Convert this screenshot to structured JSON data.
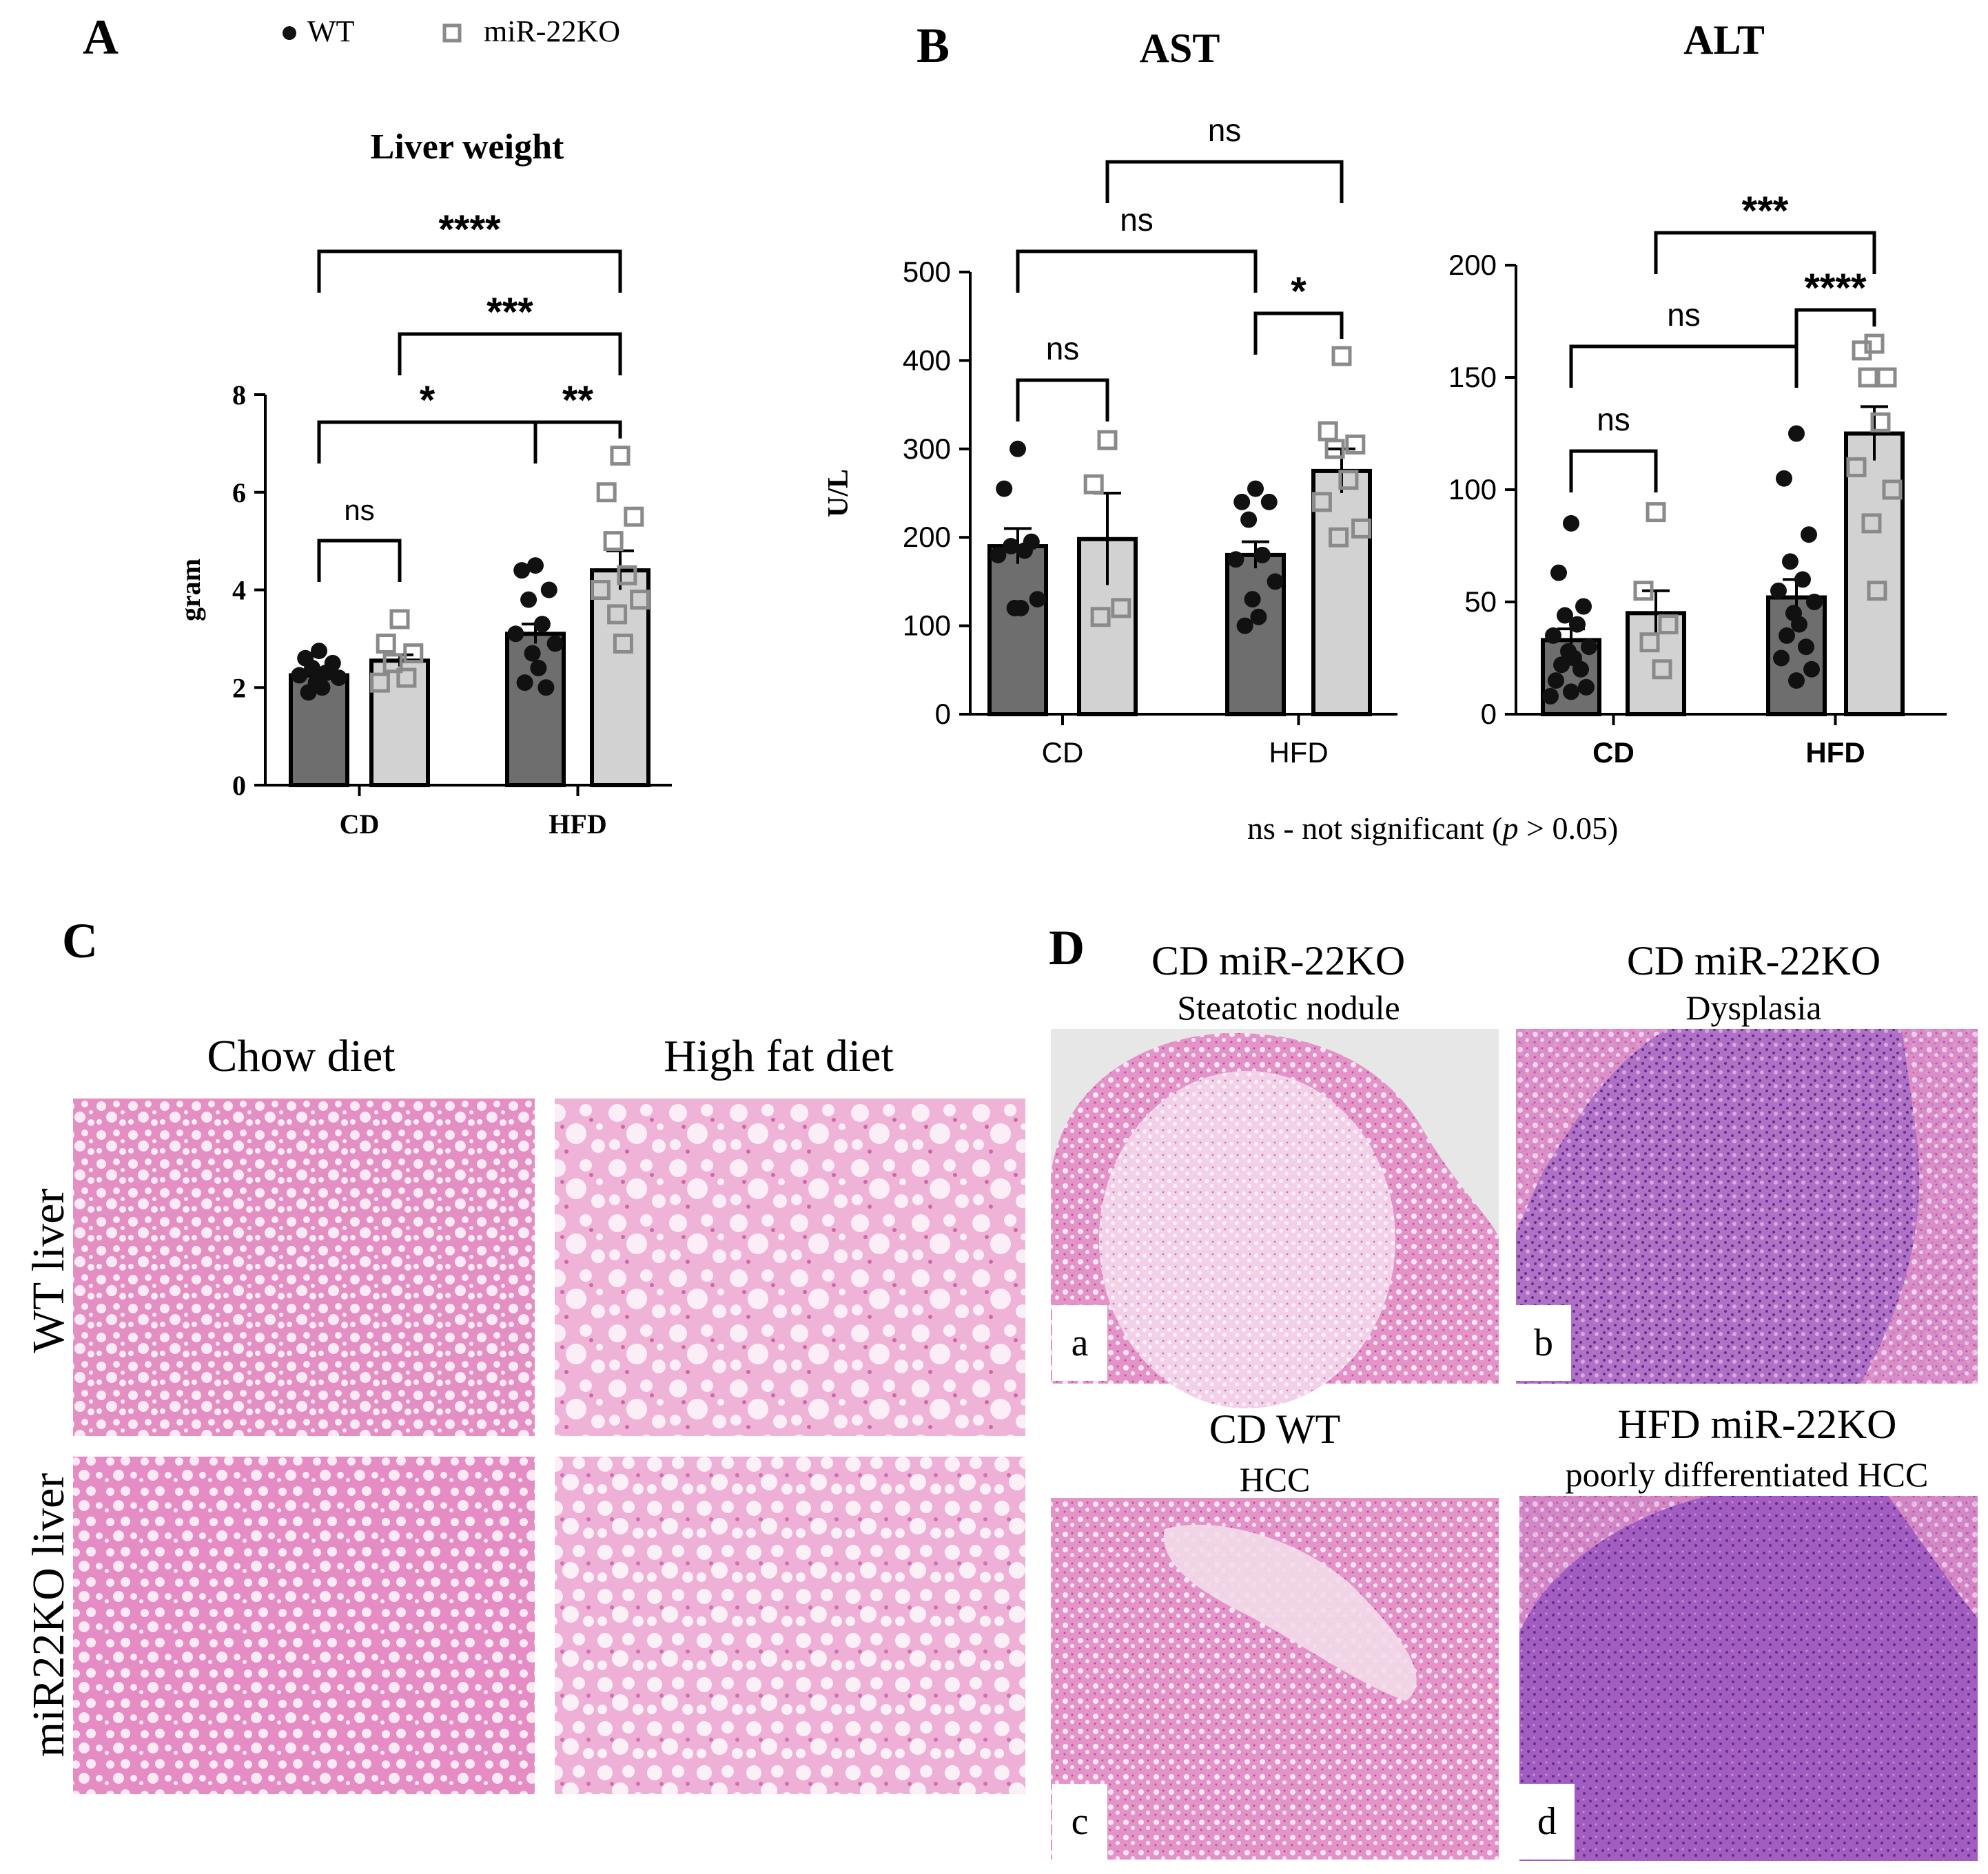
{
  "colors": {
    "wt_bar": "#6e6e6e",
    "ko_bar": "#d2d2d2",
    "wt_point": "#111111",
    "ko_point": "#8a8a8a",
    "he_pink": "#e48fc4",
    "he_light": "#f6d5ea",
    "he_purple": "#a760c2"
  },
  "legend": {
    "wt": "WT",
    "ko": "miR-22KO"
  },
  "panel_labels": {
    "a": "A",
    "b": "B",
    "c": "C",
    "d": "D"
  },
  "footnote": {
    "prefix": "ns - not significant (",
    "p": "p",
    "suffix": " > 0.05)"
  },
  "chart_data": [
    {
      "type": "bar",
      "title": "Liver weight",
      "ylabel": "gram",
      "ylim": [
        0,
        8
      ],
      "yticks": [
        "0",
        "2",
        "4",
        "6",
        "8"
      ],
      "categories": [
        "CD",
        "HFD"
      ],
      "series": [
        {
          "name": "WT",
          "values": [
            2.25,
            3.1
          ],
          "sem": [
            0.1,
            0.2
          ],
          "points": [
            [
              2.75,
              2.6,
              2.5,
              2.4,
              2.3,
              2.25,
              2.2,
              2.1,
              2.0,
              1.9
            ],
            [
              4.5,
              4.4,
              4.0,
              3.8,
              3.3,
              3.1,
              2.9,
              2.7,
              2.4,
              2.1,
              2.0
            ]
          ]
        },
        {
          "name": "miR-22KO",
          "values": [
            2.55,
            4.4
          ],
          "sem": [
            0.12,
            0.4
          ],
          "points": [
            [
              3.4,
              2.9,
              2.7,
              2.5,
              2.2,
              2.1
            ],
            [
              6.75,
              6.0,
              5.5,
              5.0,
              4.3,
              4.0,
              3.8,
              3.5,
              2.9
            ]
          ]
        }
      ],
      "comparisons": [
        {
          "label": "ns",
          "from": [
            0,
            0
          ],
          "to": [
            0,
            1
          ]
        },
        {
          "label": "*",
          "from": [
            0,
            0
          ],
          "to": [
            1,
            0
          ]
        },
        {
          "label": "**",
          "from": [
            1,
            0
          ],
          "to": [
            1,
            1
          ]
        },
        {
          "label": "***",
          "from": [
            0,
            1
          ],
          "to": [
            1,
            1
          ]
        },
        {
          "label": "****",
          "from": [
            0,
            0
          ],
          "to": [
            1,
            1
          ]
        }
      ]
    },
    {
      "type": "bar",
      "title": "AST",
      "ylabel": "U/L",
      "ylim": [
        0,
        500
      ],
      "yticks": [
        "0",
        "100",
        "200",
        "300",
        "400",
        "500"
      ],
      "categories": [
        "CD",
        "HFD"
      ],
      "series": [
        {
          "name": "WT",
          "values": [
            190,
            180
          ],
          "sem": [
            20,
            15
          ],
          "points": [
            [
              300,
              255,
              195,
              190,
              185,
              180,
              130,
              120,
              120
            ],
            [
              255,
              240,
              240,
              220,
              180,
              175,
              150,
              130,
              110,
              100
            ]
          ]
        },
        {
          "name": "miR-22KO",
          "values": [
            198,
            275
          ],
          "sem": [
            52,
            25
          ],
          "points": [
            [
              310,
              260,
              120,
              110
            ],
            [
              405,
              320,
              305,
              300,
              265,
              240,
              210,
              200
            ]
          ]
        }
      ],
      "comparisons": [
        {
          "label": "ns",
          "from": [
            0,
            0
          ],
          "to": [
            0,
            1
          ]
        },
        {
          "label": "*",
          "from": [
            1,
            0
          ],
          "to": [
            1,
            1
          ]
        },
        {
          "label": "ns",
          "from": [
            0,
            0
          ],
          "to": [
            1,
            0
          ]
        },
        {
          "label": "ns",
          "from": [
            0,
            1
          ],
          "to": [
            1,
            1
          ]
        }
      ]
    },
    {
      "type": "bar",
      "title": "ALT",
      "ylabel": "",
      "ylim": [
        0,
        200
      ],
      "yticks": [
        "0",
        "50",
        "100",
        "150",
        "200"
      ],
      "categories": [
        "CD",
        "HFD"
      ],
      "series": [
        {
          "name": "WT",
          "values": [
            33,
            52
          ],
          "sem": [
            5,
            8
          ],
          "points": [
            [
              85,
              63,
              48,
              44,
              40,
              35,
              30,
              28,
              25,
              22,
              20,
              15,
              12,
              10,
              8
            ],
            [
              125,
              105,
              80,
              68,
              60,
              55,
              50,
              45,
              40,
              35,
              30,
              25,
              20,
              15
            ]
          ]
        },
        {
          "name": "miR-22KO",
          "values": [
            45,
            125
          ],
          "sem": [
            10,
            12
          ],
          "points": [
            [
              90,
              55,
              40,
              32,
              20
            ],
            [
              165,
              162,
              150,
              150,
              130,
              110,
              100,
              85,
              55
            ]
          ]
        }
      ],
      "comparisons": [
        {
          "label": "ns",
          "from": [
            0,
            0
          ],
          "to": [
            0,
            1
          ]
        },
        {
          "label": "****",
          "from": [
            1,
            0
          ],
          "to": [
            1,
            1
          ]
        },
        {
          "label": "ns",
          "from": [
            0,
            0
          ],
          "to": [
            1,
            0
          ]
        },
        {
          "label": "***",
          "from": [
            0,
            1
          ],
          "to": [
            1,
            1
          ]
        }
      ]
    }
  ],
  "panel_c": {
    "col_headers": [
      "Chow diet",
      "High fat diet"
    ],
    "row_headers": [
      "WT liver",
      "miR22KO liver"
    ]
  },
  "panel_d": {
    "tiles": [
      {
        "title": "CD miR-22KO",
        "subtitle": "Steatotic nodule",
        "letter": "a"
      },
      {
        "title": "CD miR-22KO",
        "subtitle": "Dysplasia",
        "letter": "b"
      },
      {
        "title": "CD WT",
        "subtitle": "HCC",
        "letter": "c"
      },
      {
        "title": "HFD miR-22KO",
        "subtitle": "poorly differentiated HCC",
        "letter": "d"
      }
    ]
  }
}
